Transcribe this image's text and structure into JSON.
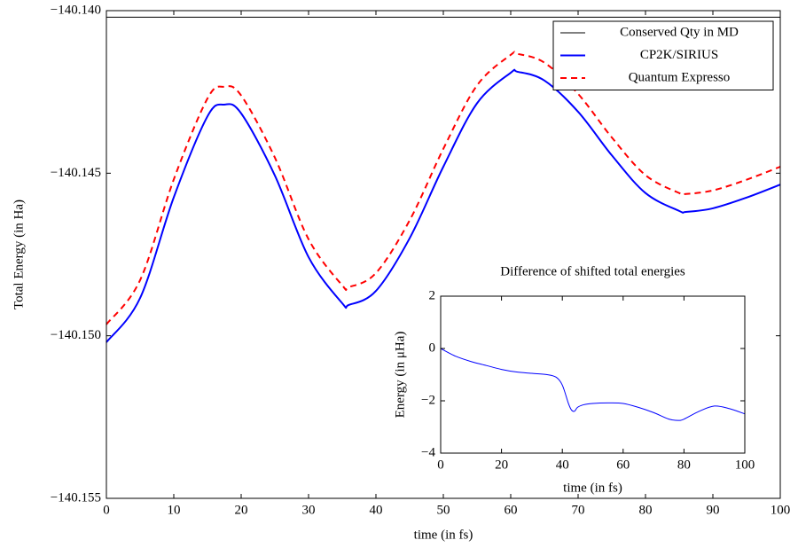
{
  "chart_data": [
    {
      "type": "line",
      "xlabel": "time (in fs)",
      "ylabel": "Total Energy (in Ha)",
      "xlim": [
        0,
        100
      ],
      "ylim": [
        -140.155,
        -140.14
      ],
      "xticks": [
        0,
        10,
        20,
        30,
        40,
        50,
        60,
        70,
        80,
        90,
        100
      ],
      "yticks": [
        {
          "value": -140.155,
          "label": "−140.155"
        },
        {
          "value": -140.15,
          "label": "−140.150"
        },
        {
          "value": -140.145,
          "label": "−140.145"
        },
        {
          "value": -140.14,
          "label": "−140.140"
        }
      ],
      "legend": "upper right",
      "series": [
        {
          "name": "Conserved Qty in MD",
          "color": "#000000",
          "linestyle": "solid",
          "linewidth": 1,
          "x": [
            0,
            100
          ],
          "values": [
            -140.1402,
            -140.1402
          ]
        },
        {
          "name": "CP2K/SIRIUS",
          "color": "#0000ff",
          "linestyle": "solid",
          "linewidth": 2,
          "x": [
            0,
            5,
            10,
            15,
            17.5,
            20,
            25,
            30,
            35,
            36,
            40,
            45,
            50,
            55,
            60,
            61,
            65,
            70,
            75,
            80,
            85,
            86,
            90,
            95,
            100
          ],
          "values": [
            -140.1502,
            -140.14884,
            -140.14574,
            -140.14325,
            -140.14289,
            -140.14316,
            -140.14507,
            -140.14758,
            -140.149,
            -140.14905,
            -140.14862,
            -140.147,
            -140.1448,
            -140.14285,
            -140.14191,
            -140.14188,
            -140.14215,
            -140.14311,
            -140.14445,
            -140.14561,
            -140.14616,
            -140.14619,
            -140.14608,
            -140.14575,
            -140.14535
          ]
        },
        {
          "name": "Quantum Expresso",
          "color": "#ff0000",
          "linestyle": "dashed",
          "linewidth": 2,
          "x": [
            0,
            5,
            10,
            15,
            17.5,
            20,
            25,
            30,
            35,
            36,
            40,
            45,
            50,
            55,
            60,
            61,
            65,
            70,
            75,
            80,
            85,
            86,
            90,
            95,
            100
          ],
          "values": [
            -140.14965,
            -140.14829,
            -140.14519,
            -140.1427,
            -140.14234,
            -140.14261,
            -140.14452,
            -140.14703,
            -140.14845,
            -140.1485,
            -140.14807,
            -140.14645,
            -140.14425,
            -140.1423,
            -140.14136,
            -140.14133,
            -140.1416,
            -140.14256,
            -140.1439,
            -140.14506,
            -140.14561,
            -140.14564,
            -140.14553,
            -140.1452,
            -140.1448
          ]
        }
      ]
    },
    {
      "type": "line",
      "title": "Difference of shifted total energies",
      "xlabel": "time (in fs)",
      "ylabel": "Energy (in μHa)",
      "xlim": [
        0,
        100
      ],
      "ylim": [
        -4,
        2
      ],
      "xticks": [
        0,
        20,
        40,
        60,
        80,
        100
      ],
      "yticks": [
        {
          "value": -4,
          "label": "−4"
        },
        {
          "value": -2,
          "label": "−2"
        },
        0,
        2
      ],
      "series": [
        {
          "color": "#0000ff",
          "linestyle": "solid",
          "linewidth": 1,
          "x": [
            0,
            5,
            10,
            15,
            20,
            25,
            30,
            35,
            38,
            40,
            42,
            43,
            44,
            45,
            47,
            50,
            55,
            60,
            65,
            70,
            75,
            78,
            80,
            85,
            90,
            95,
            100
          ],
          "values": [
            0,
            -0.3,
            -0.5,
            -0.65,
            -0.8,
            -0.9,
            -0.95,
            -1.0,
            -1.1,
            -1.4,
            -2.1,
            -2.35,
            -2.4,
            -2.25,
            -2.15,
            -2.1,
            -2.08,
            -2.1,
            -2.25,
            -2.45,
            -2.7,
            -2.75,
            -2.7,
            -2.4,
            -2.2,
            -2.3,
            -2.5
          ]
        }
      ]
    }
  ]
}
